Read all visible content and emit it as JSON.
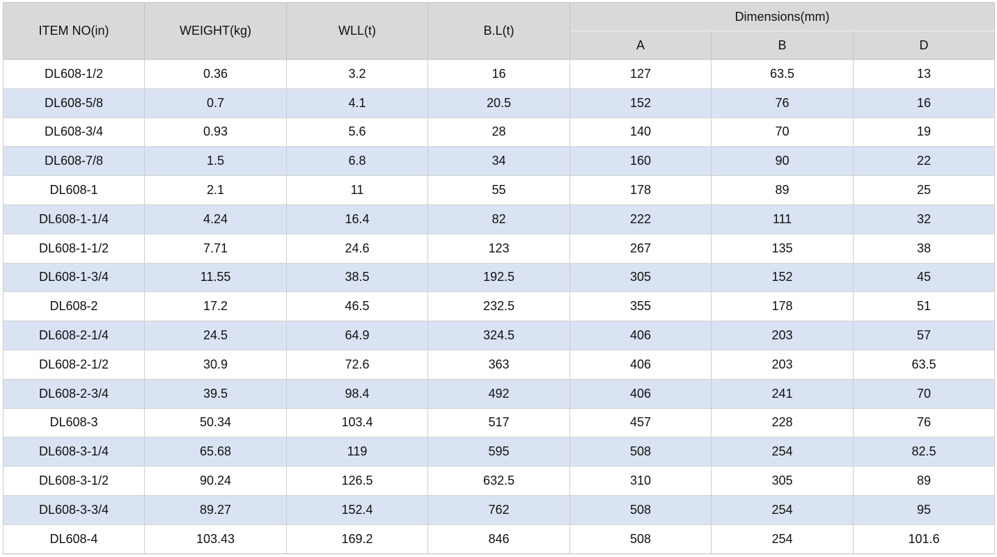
{
  "table": {
    "headers": {
      "item_no": "ITEM NO(in)",
      "weight": "WEIGHT(kg)",
      "wll": "WLL(t)",
      "bl": "B.L(t)",
      "dimensions": "Dimensions(mm)",
      "dim_a": "A",
      "dim_b": "B",
      "dim_d": "D"
    },
    "rows": [
      [
        "DL608-1/2",
        "0.36",
        "3.2",
        "16",
        "127",
        "63.5",
        "13"
      ],
      [
        "DL608-5/8",
        "0.7",
        "4.1",
        "20.5",
        "152",
        "76",
        "16"
      ],
      [
        "DL608-3/4",
        "0.93",
        "5.6",
        "28",
        "140",
        "70",
        "19"
      ],
      [
        "DL608-7/8",
        "1.5",
        "6.8",
        "34",
        "160",
        "90",
        "22"
      ],
      [
        "DL608-1",
        "2.1",
        "11",
        "55",
        "178",
        "89",
        "25"
      ],
      [
        "DL608-1-1/4",
        "4.24",
        "16.4",
        "82",
        "222",
        "111",
        "32"
      ],
      [
        "DL608-1-1/2",
        "7.71",
        "24.6",
        "123",
        "267",
        "135",
        "38"
      ],
      [
        "DL608-1-3/4",
        "11.55",
        "38.5",
        "192.5",
        "305",
        "152",
        "45"
      ],
      [
        "DL608-2",
        "17.2",
        "46.5",
        "232.5",
        "355",
        "178",
        "51"
      ],
      [
        "DL608-2-1/4",
        "24.5",
        "64.9",
        "324.5",
        "406",
        "203",
        "57"
      ],
      [
        "DL608-2-1/2",
        "30.9",
        "72.6",
        "363",
        "406",
        "203",
        "63.5"
      ],
      [
        "DL608-2-3/4",
        "39.5",
        "98.4",
        "492",
        "406",
        "241",
        "70"
      ],
      [
        "DL608-3",
        "50.34",
        "103.4",
        "517",
        "457",
        "228",
        "76"
      ],
      [
        "DL608-3-1/4",
        "65.68",
        "119",
        "595",
        "508",
        "254",
        "82.5"
      ],
      [
        "DL608-3-1/2",
        "90.24",
        "126.5",
        "632.5",
        "310",
        "305",
        "89"
      ],
      [
        "DL608-3-3/4",
        "89.27",
        "152.4",
        "762",
        "508",
        "254",
        "95"
      ],
      [
        "DL608-4",
        "103.43",
        "169.2",
        "846",
        "508",
        "254",
        "101.6"
      ]
    ]
  },
  "colors": {
    "header_bg": "#d9d9d9",
    "stripe_bg": "#dae3f3",
    "row_bg": "#ffffff"
  }
}
